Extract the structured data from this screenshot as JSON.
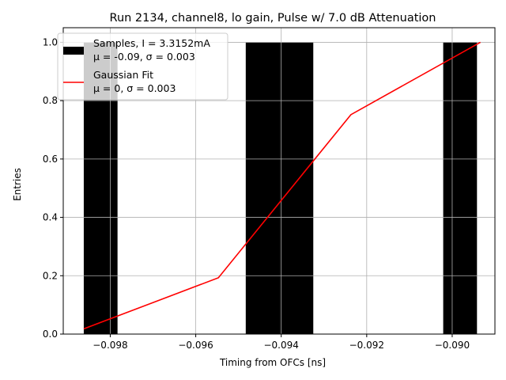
{
  "chart_data": {
    "type": "bar",
    "title": "Run 2134, channel8, lo gain, Pulse w/ 7.0 dB Attenuation",
    "xlabel": "Timing from OFCs [ns]",
    "ylabel": "Entries",
    "xlim": [
      -0.0991,
      -0.089
    ],
    "ylim": [
      0,
      1.05
    ],
    "x_ticks": [
      -0.098,
      -0.096,
      -0.094,
      -0.092,
      -0.09
    ],
    "x_tick_labels": [
      "−0.098",
      "−0.096",
      "−0.094",
      "−0.092",
      "−0.090"
    ],
    "y_ticks": [
      0.0,
      0.2,
      0.4,
      0.6,
      0.8,
      1.0
    ],
    "y_tick_labels": [
      "0.0",
      "0.2",
      "0.4",
      "0.6",
      "0.8",
      "1.0"
    ],
    "grid": true,
    "legend_position": "top-left",
    "bars": [
      {
        "x0": -0.09862,
        "x1": -0.09783,
        "value": 1
      },
      {
        "x0": -0.09483,
        "x1": -0.09404,
        "value": 1
      },
      {
        "x0": -0.09404,
        "x1": -0.09325,
        "value": 1
      },
      {
        "x0": -0.09021,
        "x1": -0.08942,
        "value": 1
      }
    ],
    "fit_line": {
      "x": [
        -0.09862,
        -0.09547,
        -0.09237,
        -0.08934
      ],
      "y": [
        0.018,
        0.193,
        0.752,
        1.0
      ]
    },
    "bar_color": "#000000",
    "fit_color": "#ff0000",
    "legend": [
      {
        "kind": "bar",
        "line1": "Samples, I = 3.3152mA",
        "line2": "μ = -0.09, σ = 0.003"
      },
      {
        "kind": "line",
        "line1": "Gaussian Fit",
        "line2": "μ = 0, σ = 0.003"
      }
    ]
  }
}
